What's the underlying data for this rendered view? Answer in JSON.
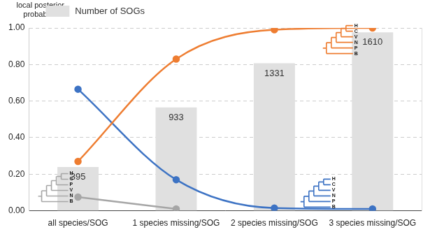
{
  "chart_data": {
    "type": "bar",
    "y_label": "local posterior probabilities",
    "categories": [
      "all species/SOG",
      "1 species missing/SOG",
      "2 species missing/SOG",
      "3 species missing/SOG"
    ],
    "series": [
      {
        "name": "Number of SOGs",
        "type": "bar",
        "axis": "y2",
        "color": "#e0e0e0",
        "values": [
          395,
          933,
          1331,
          1610
        ],
        "data_labels": true
      },
      {
        "type": "line",
        "color": "#ee7d31",
        "marker": "circle",
        "values": [
          0.27,
          0.83,
          0.99,
          1.0
        ]
      },
      {
        "type": "line",
        "color": "#3d73c4",
        "marker": "circle",
        "values": [
          0.665,
          0.17,
          0.015,
          0.01
        ]
      },
      {
        "type": "line",
        "color": "#a6a6a6",
        "marker": "circle",
        "values": [
          0.075,
          0.01,
          null,
          null
        ]
      }
    ],
    "ylim": [
      0,
      1
    ],
    "yticks": [
      {
        "value": 0,
        "label": "0.00"
      },
      {
        "value": 0.2,
        "label": "0.20"
      },
      {
        "value": 0.4,
        "label": "0.40"
      },
      {
        "value": 0.6,
        "label": "0.60"
      },
      {
        "value": 0.8,
        "label": "0.80"
      },
      {
        "value": 1,
        "label": "1.00"
      }
    ],
    "y2lim": [
      0,
      1650
    ],
    "grid": true,
    "legend": "upper left",
    "trees": [
      {
        "leaves": [
          "H",
          "C",
          "P",
          "V",
          "N",
          "B"
        ],
        "color": "#a6a6a6"
      },
      {
        "leaves": [
          "H",
          "C",
          "V",
          "N",
          "P",
          "B"
        ],
        "color": "#ee7d31"
      },
      {
        "leaves": [
          "H",
          "C",
          "V",
          "N",
          "P",
          "B"
        ],
        "color": "#3d73c4"
      }
    ]
  }
}
